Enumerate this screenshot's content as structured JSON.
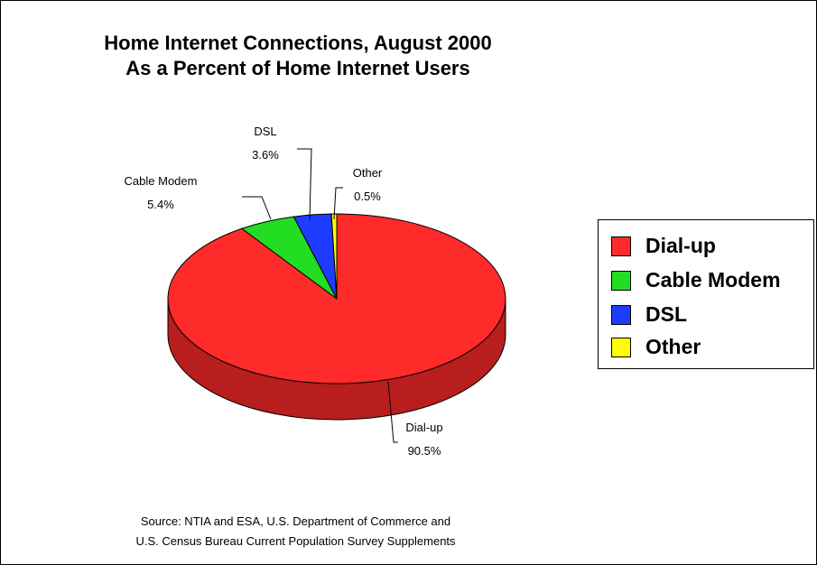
{
  "chart_data": {
    "type": "pie",
    "title": "Home Internet Connections, August 2000",
    "subtitle": "As a Percent of Home Internet Users",
    "slices": [
      {
        "name": "Dial-up",
        "value": 90.5,
        "label": "90.5%",
        "color": "#ff2a2a"
      },
      {
        "name": "Cable Modem",
        "value": 5.4,
        "label": "5.4%",
        "color": "#22dd22"
      },
      {
        "name": "DSL",
        "value": 3.6,
        "label": "3.6%",
        "color": "#1e3cff"
      },
      {
        "name": "Other",
        "value": 0.5,
        "label": "0.5%",
        "color": "#ffff00"
      }
    ],
    "legend": {
      "placement": "right",
      "entries": [
        "Dial-up",
        "Cable Modem",
        "DSL",
        "Other"
      ]
    },
    "style": "3d"
  },
  "source": {
    "line1": "Source: NTIA and ESA, U.S. Department of Commerce and",
    "line2": "U.S. Census Bureau Current Population Survey Supplements"
  }
}
